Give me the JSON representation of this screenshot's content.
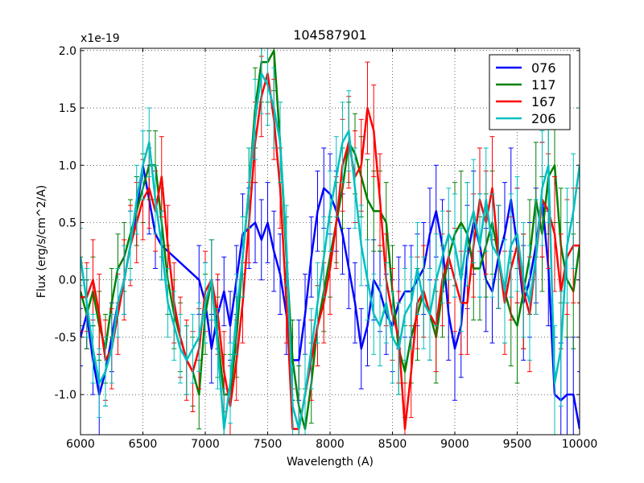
{
  "chart_data": {
    "type": "line",
    "title": "104587901",
    "xlabel": "Wavelength (A)",
    "ylabel": "Flux (erg/s/cm^2/A)",
    "offset_label": "x1e-19",
    "xlim": [
      6000,
      10000
    ],
    "ylim": [
      -1.35,
      2.02
    ],
    "grid": true,
    "legend_position": "top-right",
    "x_ticks": [
      6000,
      6500,
      7000,
      7500,
      8000,
      8500,
      9000,
      9500,
      10000
    ],
    "y_ticks": [
      -1.0,
      -0.5,
      0.0,
      0.5,
      1.0,
      1.5,
      2.0
    ],
    "x_tick_labels": [
      "6000",
      "6500",
      "7000",
      "7500",
      "8000",
      "8500",
      "9000",
      "9500",
      "10000"
    ],
    "y_tick_labels": [
      "-1.0",
      "-0.5",
      "0.0",
      "0.5",
      "1.0",
      "1.5",
      "2.0"
    ],
    "series": [
      {
        "name": "076",
        "color": "#0000ff",
        "x": [
          6000,
          6050,
          6100,
          6150,
          6200,
          6250,
          6300,
          6350,
          6400,
          6450,
          6500,
          6550,
          6600,
          6650,
          6950,
          7000,
          7050,
          7100,
          7150,
          7200,
          7250,
          7300,
          7350,
          7400,
          7450,
          7500,
          7550,
          7600,
          7650,
          7700,
          7750,
          7800,
          7850,
          7900,
          7950,
          8000,
          8050,
          8100,
          8150,
          8200,
          8250,
          8300,
          8350,
          8400,
          8450,
          8500,
          8550,
          8600,
          8650,
          8700,
          8750,
          8800,
          8850,
          8900,
          8950,
          9000,
          9050,
          9100,
          9150,
          9200,
          9250,
          9300,
          9350,
          9400,
          9450,
          9500,
          9550,
          9600,
          9650,
          9700,
          9750,
          9800,
          9850,
          9900,
          9950,
          10000
        ],
        "y": [
          -0.5,
          -0.3,
          -0.7,
          -1.0,
          -0.8,
          -0.5,
          -0.2,
          0.0,
          0.3,
          0.6,
          1.0,
          0.7,
          0.4,
          0.3,
          0.0,
          -0.2,
          -0.6,
          -0.3,
          -0.1,
          -0.4,
          0.0,
          0.4,
          0.45,
          0.5,
          0.35,
          0.5,
          0.25,
          0.05,
          -0.3,
          -0.7,
          -0.7,
          -0.3,
          0.2,
          0.6,
          0.8,
          0.75,
          0.6,
          0.4,
          0.1,
          -0.2,
          -0.6,
          -0.4,
          0.0,
          -0.1,
          -0.3,
          -0.4,
          -0.2,
          -0.1,
          -0.1,
          0.0,
          0.1,
          0.4,
          0.6,
          0.3,
          -0.3,
          -0.6,
          -0.4,
          0.2,
          0.5,
          0.3,
          0.0,
          -0.1,
          0.2,
          0.4,
          0.7,
          0.3,
          -0.2,
          0.0,
          0.3,
          0.7,
          0.1,
          -1.0,
          -1.05,
          -1.0,
          -1.0,
          -1.3
        ],
        "err": [
          0.25,
          0.3,
          0.3,
          0.35,
          0.3,
          0.3,
          0.3,
          0.3,
          0.3,
          0.3,
          0.3,
          0.3,
          0.3,
          0.3,
          0.3,
          0.35,
          0.3,
          0.3,
          0.3,
          0.3,
          0.3,
          0.35,
          0.35,
          0.35,
          0.35,
          0.35,
          0.35,
          0.35,
          0.35,
          0.35,
          0.35,
          0.35,
          0.35,
          0.35,
          0.35,
          0.35,
          0.35,
          0.35,
          0.35,
          0.35,
          0.35,
          0.35,
          0.35,
          0.35,
          0.35,
          0.4,
          0.4,
          0.4,
          0.4,
          0.4,
          0.4,
          0.4,
          0.4,
          0.4,
          0.4,
          0.45,
          0.45,
          0.45,
          0.45,
          0.45,
          0.45,
          0.45,
          0.45,
          0.45,
          0.45,
          0.5,
          0.5,
          0.5,
          0.5,
          0.5,
          0.5,
          0.5,
          0.5,
          0.5,
          0.5,
          0.5
        ]
      },
      {
        "name": "117",
        "color": "#008000",
        "x": [
          6000,
          6050,
          6100,
          6150,
          6200,
          6250,
          6300,
          6350,
          6400,
          6450,
          6500,
          6550,
          6600,
          6650,
          6700,
          6750,
          6800,
          6850,
          6900,
          6950,
          7000,
          7050,
          7100,
          7150,
          7200,
          7250,
          7300,
          7350,
          7400,
          7450,
          7500,
          7550,
          7600,
          7650,
          7700,
          7750,
          7800,
          7850,
          7900,
          7950,
          8000,
          8050,
          8100,
          8150,
          8200,
          8250,
          8300,
          8350,
          8400,
          8450,
          8500,
          8550,
          8600,
          8650,
          8700,
          8750,
          8800,
          8850,
          8900,
          8950,
          9000,
          9050,
          9100,
          9150,
          9200,
          9250,
          9300,
          9350,
          9400,
          9450,
          9500,
          9550,
          9600,
          9650,
          9700,
          9750,
          9800,
          9850,
          9900,
          9950,
          10000
        ],
        "y": [
          -0.1,
          -0.3,
          -0.1,
          -0.4,
          -0.6,
          -0.2,
          0.1,
          0.2,
          0.4,
          0.6,
          0.8,
          1.0,
          1.0,
          0.5,
          0.0,
          -0.3,
          -0.5,
          -0.7,
          -0.8,
          -1.0,
          -0.3,
          0.0,
          -0.5,
          -1.0,
          -1.0,
          -0.5,
          0.2,
          0.8,
          1.5,
          1.9,
          1.9,
          2.0,
          1.2,
          0.2,
          -0.7,
          -1.1,
          -1.3,
          -0.9,
          -0.4,
          -0.1,
          0.2,
          0.5,
          0.8,
          1.2,
          1.1,
          0.9,
          0.7,
          0.6,
          0.6,
          0.5,
          -0.1,
          -0.6,
          -0.8,
          -0.5,
          -0.3,
          -0.1,
          -0.3,
          -0.5,
          -0.1,
          0.2,
          0.4,
          0.5,
          0.4,
          0.1,
          0.1,
          0.3,
          0.5,
          0.2,
          -0.1,
          -0.3,
          -0.4,
          -0.1,
          0.2,
          0.7,
          0.4,
          0.9,
          1.0,
          0.3,
          0.0,
          -0.1,
          0.3
        ],
        "err": [
          0.3,
          0.3,
          0.3,
          0.3,
          0.3,
          0.3,
          0.3,
          0.3,
          0.3,
          0.3,
          0.3,
          0.3,
          0.3,
          0.3,
          0.3,
          0.3,
          0.3,
          0.3,
          0.3,
          0.3,
          0.35,
          0.35,
          0.35,
          0.35,
          0.35,
          0.35,
          0.35,
          0.35,
          0.35,
          0.35,
          0.35,
          0.35,
          0.35,
          0.35,
          0.35,
          0.35,
          0.35,
          0.35,
          0.35,
          0.35,
          0.35,
          0.35,
          0.35,
          0.35,
          0.35,
          0.35,
          0.35,
          0.35,
          0.35,
          0.35,
          0.4,
          0.4,
          0.4,
          0.4,
          0.4,
          0.4,
          0.4,
          0.4,
          0.4,
          0.4,
          0.45,
          0.45,
          0.45,
          0.45,
          0.45,
          0.45,
          0.45,
          0.45,
          0.45,
          0.45,
          0.5,
          0.5,
          0.5,
          0.5,
          0.5,
          0.5,
          0.5,
          0.5,
          0.5,
          0.5,
          0.5
        ]
      },
      {
        "name": "167",
        "color": "#ff0000",
        "x": [
          6000,
          6050,
          6100,
          6150,
          6200,
          6250,
          6300,
          6350,
          6400,
          6450,
          6500,
          6550,
          6600,
          6650,
          6700,
          6750,
          6800,
          6850,
          6900,
          6950,
          7000,
          7050,
          7100,
          7150,
          7200,
          7250,
          7300,
          7350,
          7400,
          7450,
          7500,
          7550,
          7600,
          7650,
          7700,
          7750,
          7800,
          7850,
          7900,
          7950,
          8000,
          8050,
          8100,
          8150,
          8200,
          8250,
          8300,
          8350,
          8400,
          8450,
          8500,
          8550,
          8600,
          8650,
          8700,
          8750,
          8800,
          8850,
          8900,
          8950,
          9000,
          9050,
          9100,
          9150,
          9200,
          9250,
          9300,
          9350,
          9400,
          9450,
          9500,
          9550,
          9600,
          9650,
          9700,
          9750,
          9800,
          9850,
          9900,
          9950,
          10000
        ],
        "y": [
          -0.15,
          -0.15,
          0.0,
          -0.3,
          -0.7,
          -0.6,
          -0.3,
          0.0,
          0.3,
          0.5,
          0.7,
          0.8,
          0.6,
          0.9,
          0.3,
          -0.2,
          -0.5,
          -0.7,
          -0.8,
          -0.6,
          -0.1,
          0.0,
          -0.3,
          -0.8,
          -1.1,
          -0.7,
          -0.2,
          0.5,
          1.2,
          1.6,
          1.8,
          1.4,
          0.8,
          -0.2,
          -1.3,
          -1.3,
          -1.0,
          -0.7,
          -0.4,
          -0.2,
          0.1,
          0.5,
          1.0,
          1.2,
          0.9,
          1.0,
          1.5,
          1.3,
          0.7,
          0.0,
          -0.3,
          -0.5,
          -1.3,
          -0.8,
          -0.2,
          -0.1,
          -0.3,
          -0.4,
          0.0,
          0.2,
          0.0,
          -0.2,
          -0.2,
          0.3,
          0.7,
          0.5,
          0.8,
          0.2,
          -0.2,
          0.1,
          0.3,
          -0.1,
          -0.3,
          0.2,
          0.7,
          0.6,
          0.4,
          -0.1,
          0.2,
          0.3,
          0.3
        ],
        "err": [
          0.3,
          0.3,
          0.35,
          0.35,
          0.35,
          0.35,
          0.35,
          0.35,
          0.35,
          0.35,
          0.35,
          0.35,
          0.35,
          0.35,
          0.35,
          0.35,
          0.35,
          0.35,
          0.35,
          0.35,
          0.35,
          0.35,
          0.35,
          0.35,
          0.35,
          0.35,
          0.35,
          0.35,
          0.35,
          0.35,
          0.35,
          0.35,
          0.35,
          0.35,
          0.35,
          0.35,
          0.35,
          0.35,
          0.35,
          0.35,
          0.4,
          0.4,
          0.4,
          0.4,
          0.4,
          0.4,
          0.4,
          0.4,
          0.4,
          0.4,
          0.4,
          0.4,
          0.4,
          0.4,
          0.4,
          0.4,
          0.4,
          0.4,
          0.4,
          0.4,
          0.45,
          0.45,
          0.45,
          0.45,
          0.45,
          0.45,
          0.45,
          0.45,
          0.45,
          0.45,
          0.5,
          0.5,
          0.5,
          0.5,
          0.5,
          0.5,
          0.5,
          0.5,
          0.5,
          0.5,
          0.5
        ]
      },
      {
        "name": "206",
        "color": "#00bfbf",
        "x": [
          6000,
          6050,
          6100,
          6150,
          6200,
          6250,
          6300,
          6350,
          6400,
          6450,
          6500,
          6550,
          6600,
          6650,
          6700,
          6750,
          6800,
          6850,
          6900,
          6950,
          7000,
          7050,
          7100,
          7150,
          7200,
          7250,
          7300,
          7350,
          7400,
          7450,
          7500,
          7550,
          7600,
          7650,
          7700,
          7750,
          7800,
          7850,
          7900,
          7950,
          8000,
          8050,
          8100,
          8150,
          8200,
          8250,
          8300,
          8350,
          8400,
          8450,
          8500,
          8550,
          8600,
          8650,
          8700,
          8750,
          8800,
          8850,
          8900,
          8950,
          9000,
          9050,
          9100,
          9150,
          9200,
          9250,
          9300,
          9350,
          9400,
          9450,
          9500,
          9550,
          9600,
          9650,
          9700,
          9750,
          9800,
          9850,
          9900,
          9950,
          10000
        ],
        "y": [
          0.2,
          -0.2,
          -0.6,
          -0.9,
          -0.8,
          -0.6,
          -0.2,
          0.0,
          0.3,
          0.7,
          1.0,
          1.2,
          0.7,
          0.3,
          -0.2,
          -0.4,
          -0.6,
          -0.7,
          -0.6,
          -0.5,
          -0.2,
          0.0,
          -0.6,
          -1.3,
          -0.9,
          -0.3,
          0.2,
          0.8,
          1.4,
          1.8,
          1.7,
          1.5,
          1.2,
          0.3,
          -1.1,
          -1.3,
          -1.0,
          -0.6,
          -0.2,
          0.2,
          0.6,
          0.9,
          1.2,
          1.3,
          0.8,
          0.3,
          0.0,
          -0.3,
          -0.4,
          -0.2,
          -0.5,
          -0.6,
          -0.3,
          -0.2,
          0.1,
          -0.2,
          -0.3,
          0.0,
          0.2,
          0.4,
          0.3,
          0.0,
          0.4,
          0.6,
          0.3,
          0.7,
          0.3,
          0.2,
          -0.1,
          0.3,
          0.4,
          0.0,
          -0.2,
          0.2,
          0.8,
          1.0,
          -0.9,
          -0.6,
          0.3,
          0.6,
          1.0
        ],
        "err": [
          0.25,
          0.3,
          0.3,
          0.3,
          0.3,
          0.3,
          0.3,
          0.3,
          0.3,
          0.3,
          0.3,
          0.3,
          0.3,
          0.3,
          0.3,
          0.3,
          0.3,
          0.3,
          0.3,
          0.3,
          0.35,
          0.35,
          0.35,
          0.35,
          0.35,
          0.35,
          0.35,
          0.35,
          0.35,
          0.35,
          0.35,
          0.35,
          0.35,
          0.35,
          0.35,
          0.35,
          0.35,
          0.35,
          0.35,
          0.35,
          0.35,
          0.35,
          0.35,
          0.35,
          0.35,
          0.35,
          0.35,
          0.35,
          0.35,
          0.35,
          0.4,
          0.4,
          0.4,
          0.4,
          0.4,
          0.4,
          0.4,
          0.4,
          0.4,
          0.4,
          0.45,
          0.45,
          0.45,
          0.45,
          0.45,
          0.45,
          0.45,
          0.45,
          0.45,
          0.45,
          0.5,
          0.5,
          0.5,
          0.5,
          0.5,
          0.5,
          0.5,
          0.5,
          0.5,
          0.5,
          0.5
        ]
      }
    ]
  }
}
